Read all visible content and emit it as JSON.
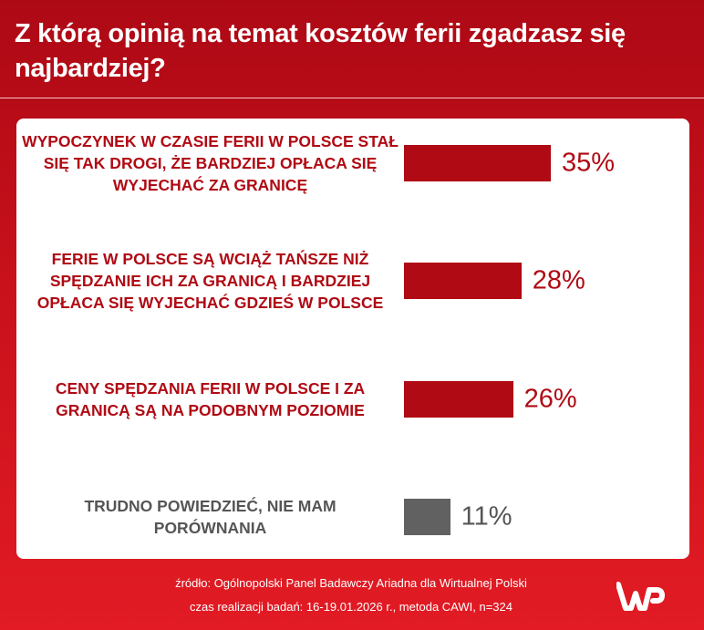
{
  "title": "Z którą opinią na temat kosztów ferii zgadzasz się najbardziej?",
  "chart_data": {
    "type": "bar",
    "orientation": "horizontal",
    "categories": [
      "WYPOCZYNEK W CZASIE FERII W POLSCE STAŁ SIĘ TAK DROGI, ŻE BARDZIEJ OPŁACA SIĘ WYJECHAĆ ZA GRANICĘ",
      "FERIE W POLSCE SĄ WCIĄŻ TAŃSZE NIŻ SPĘDZANIE ICH ZA GRANICĄ I BARDZIEJ OPŁACA SIĘ WYJECHAĆ GDZIEŚ W POLSCE",
      "CENY SPĘDZANIA FERII W POLSCE I ZA GRANICĄ SĄ NA PODOBNYM POZIOMIE",
      "TRUDNO POWIEDZIEĆ, NIE MAM PORÓWNANIA"
    ],
    "values": [
      35,
      28,
      26,
      11
    ],
    "value_labels": [
      "35%",
      "28%",
      "26%",
      "11%"
    ],
    "colors": [
      "#b00a14",
      "#b00a14",
      "#b00a14",
      "#616161"
    ],
    "xlim": [
      0,
      100
    ],
    "grid": false
  },
  "footer": {
    "source": "źródło: Ogólnopolski Panel Badawczy Ariadna dla Wirtualnej Polski",
    "method": "czas realizacji badań: 16-19.01.2026 r., metoda CAWI, n=324"
  },
  "logo": "WP"
}
